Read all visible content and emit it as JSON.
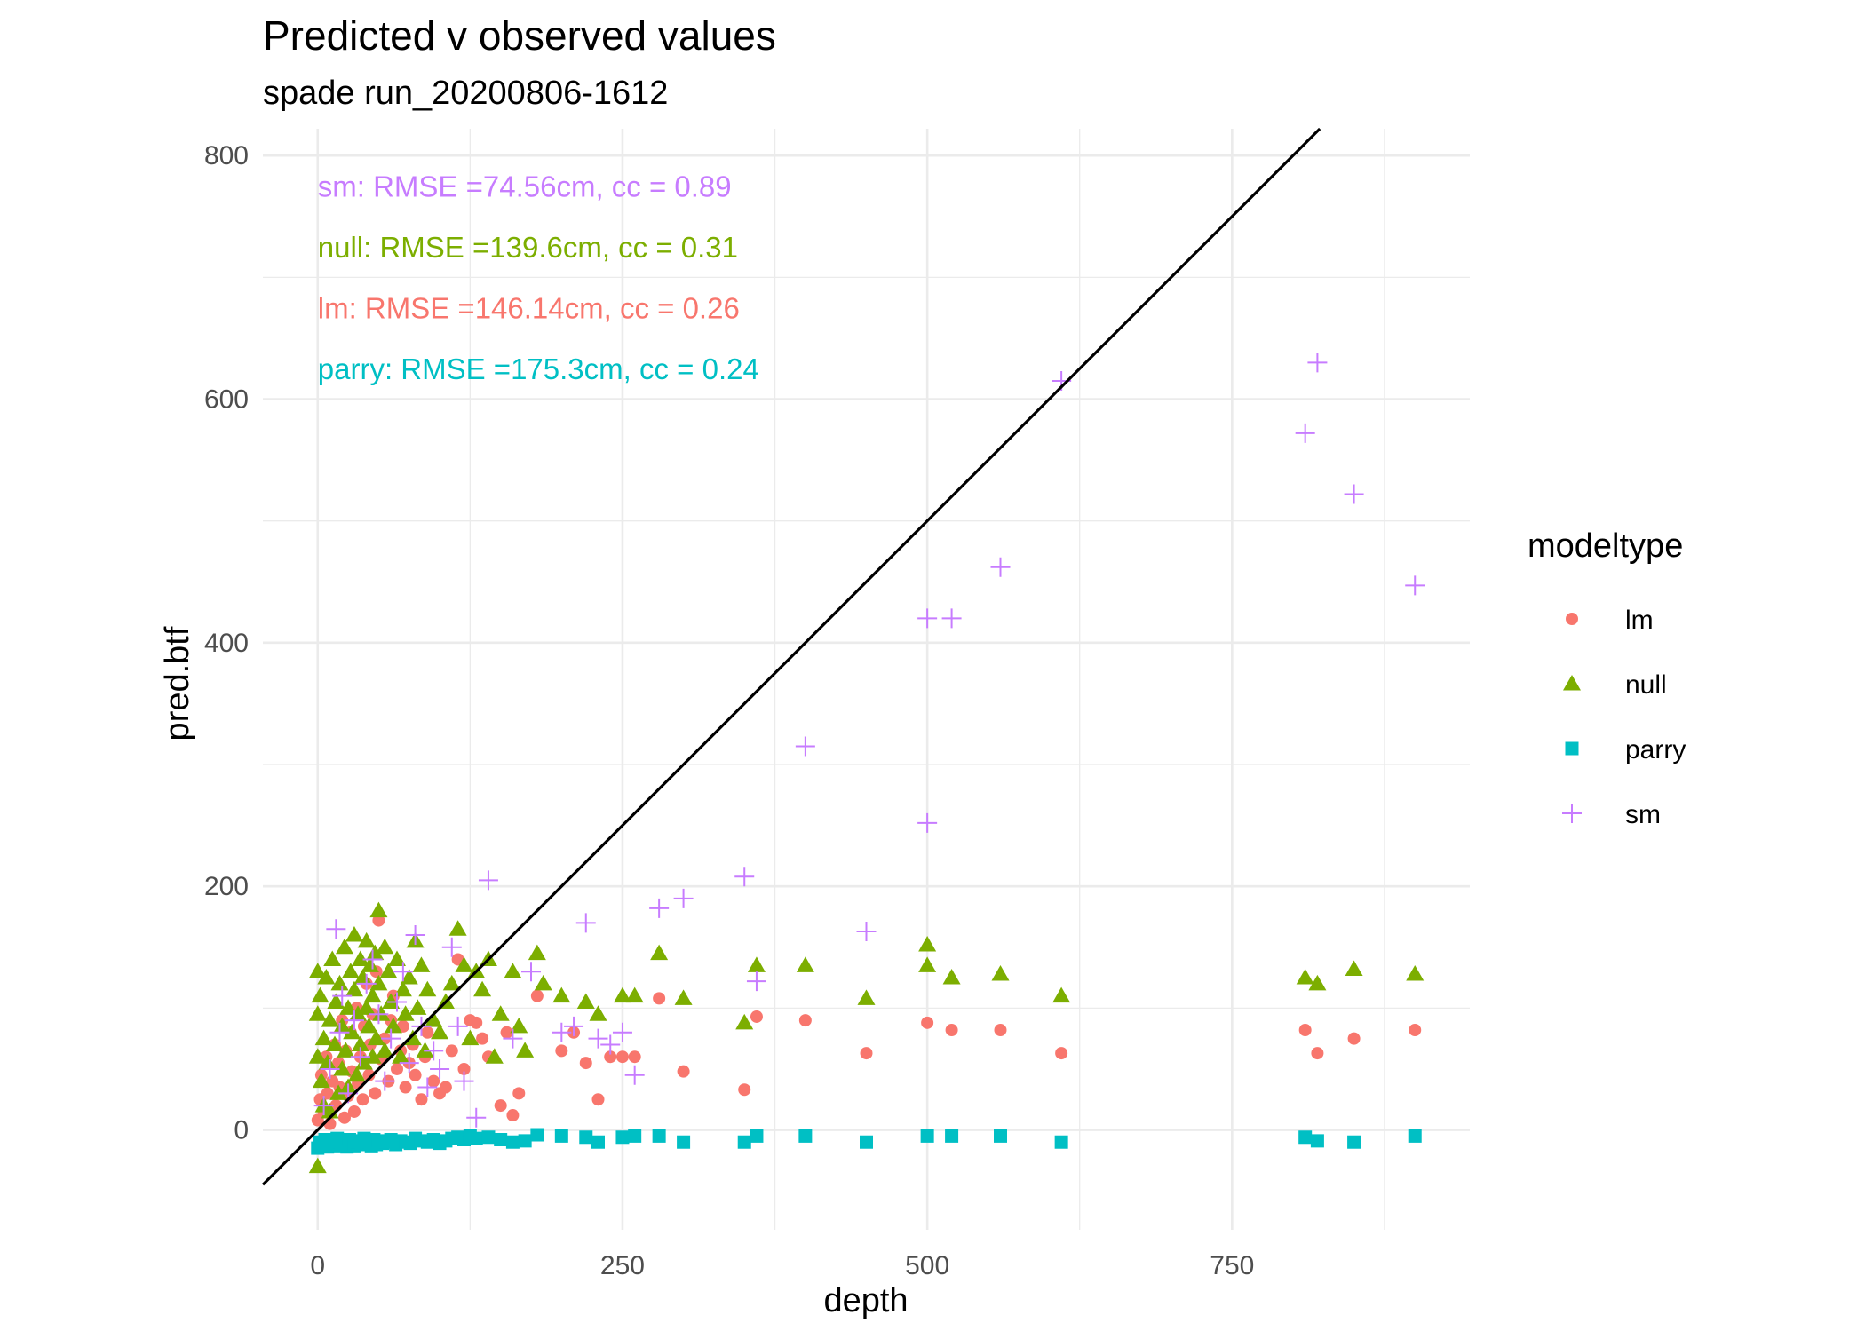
{
  "chart_data": {
    "type": "scatter",
    "title": "Predicted v observed values",
    "subtitle": "spade run_20200806-1612",
    "xlabel": "depth",
    "ylabel": "pred.btf",
    "xlim": [
      -45,
      945
    ],
    "ylim": [
      -82,
      822
    ],
    "x_ticks": [
      0,
      250,
      500,
      750
    ],
    "y_ticks": [
      0,
      200,
      400,
      600,
      800
    ],
    "grid": true,
    "legend": {
      "title": "modeltype",
      "position": "right",
      "entries": [
        {
          "name": "lm",
          "shape": "circle",
          "color": "#F8766D"
        },
        {
          "name": "null",
          "shape": "triangle",
          "color": "#7CAE00"
        },
        {
          "name": "parry",
          "shape": "square",
          "color": "#00BFC4"
        },
        {
          "name": "sm",
          "shape": "plus",
          "color": "#C77CFF"
        }
      ]
    },
    "reference_line": {
      "slope": 1,
      "intercept": 0,
      "color": "#000000"
    },
    "annotations": [
      {
        "text": "sm: RMSE =74.56cm, cc = 0.89",
        "color": "#C77CFF",
        "x": 0,
        "y": 775
      },
      {
        "text": "null: RMSE =139.6cm, cc = 0.31",
        "color": "#7CAE00",
        "x": 0,
        "y": 725
      },
      {
        "text": "lm: RMSE =146.14cm, cc = 0.26",
        "color": "#F8766D",
        "x": 0,
        "y": 675
      },
      {
        "text": "parry: RMSE =175.3cm, cc = 0.24",
        "color": "#00BFC4",
        "x": 0,
        "y": 625
      }
    ],
    "series": [
      {
        "name": "lm",
        "shape": "circle",
        "color": "#F8766D",
        "x": [
          0,
          2,
          3,
          5,
          7,
          8,
          10,
          12,
          14,
          15,
          17,
          18,
          20,
          22,
          23,
          25,
          27,
          28,
          30,
          32,
          33,
          35,
          37,
          38,
          40,
          42,
          43,
          45,
          47,
          48,
          50,
          52,
          55,
          58,
          60,
          62,
          65,
          68,
          70,
          72,
          75,
          78,
          80,
          85,
          88,
          90,
          95,
          100,
          105,
          110,
          115,
          120,
          125,
          130,
          135,
          140,
          150,
          155,
          160,
          165,
          180,
          200,
          210,
          220,
          230,
          240,
          250,
          260,
          280,
          300,
          350,
          360,
          400,
          450,
          500,
          520,
          560,
          610,
          810,
          820,
          850,
          900
        ],
        "y": [
          8,
          25,
          45,
          15,
          60,
          30,
          5,
          40,
          70,
          20,
          55,
          35,
          90,
          10,
          65,
          28,
          80,
          48,
          15,
          100,
          38,
          60,
          25,
          85,
          120,
          45,
          70,
          95,
          30,
          130,
          172,
          58,
          75,
          40,
          90,
          110,
          50,
          65,
          85,
          35,
          55,
          70,
          45,
          25,
          60,
          80,
          40,
          30,
          35,
          65,
          140,
          50,
          90,
          88,
          75,
          60,
          20,
          80,
          12,
          30,
          110,
          65,
          80,
          55,
          25,
          60,
          60,
          60,
          108,
          48,
          33,
          93,
          90,
          63,
          88,
          82,
          82,
          63,
          82,
          63,
          75,
          82
        ]
      },
      {
        "name": "null",
        "shape": "triangle",
        "color": "#7CAE00",
        "x": [
          0,
          0,
          0,
          0,
          2,
          3,
          5,
          5,
          7,
          8,
          10,
          10,
          12,
          14,
          15,
          17,
          18,
          20,
          20,
          22,
          23,
          25,
          25,
          27,
          28,
          30,
          30,
          32,
          33,
          35,
          35,
          37,
          38,
          40,
          40,
          42,
          43,
          45,
          45,
          47,
          48,
          50,
          50,
          52,
          55,
          55,
          58,
          60,
          62,
          65,
          68,
          70,
          72,
          75,
          78,
          80,
          82,
          85,
          88,
          90,
          95,
          100,
          105,
          110,
          115,
          120,
          125,
          130,
          135,
          140,
          145,
          150,
          160,
          165,
          170,
          180,
          185,
          200,
          220,
          230,
          250,
          260,
          280,
          300,
          350,
          360,
          400,
          450,
          500,
          500,
          520,
          560,
          610,
          810,
          820,
          850,
          900
        ],
        "y": [
          130,
          95,
          60,
          -30,
          110,
          40,
          75,
          20,
          125,
          55,
          90,
          15,
          140,
          70,
          105,
          30,
          120,
          85,
          50,
          150,
          65,
          100,
          35,
          130,
          80,
          160,
          115,
          45,
          95,
          140,
          70,
          125,
          55,
          155,
          100,
          85,
          135,
          60,
          110,
          145,
          75,
          180,
          120,
          95,
          150,
          65,
          130,
          105,
          85,
          140,
          60,
          115,
          95,
          125,
          75,
          155,
          100,
          135,
          65,
          115,
          90,
          80,
          105,
          120,
          165,
          135,
          75,
          130,
          115,
          140,
          60,
          95,
          130,
          85,
          65,
          145,
          120,
          110,
          105,
          95,
          110,
          110,
          145,
          108,
          88,
          135,
          135,
          108,
          135,
          152,
          125,
          128,
          110,
          125,
          120,
          132,
          128
        ]
      },
      {
        "name": "parry",
        "shape": "square",
        "color": "#00BFC4",
        "x": [
          0,
          2,
          4,
          6,
          8,
          10,
          12,
          14,
          16,
          18,
          20,
          22,
          24,
          26,
          28,
          30,
          32,
          34,
          36,
          38,
          40,
          42,
          44,
          46,
          48,
          50,
          53,
          56,
          60,
          64,
          68,
          72,
          76,
          80,
          85,
          90,
          95,
          100,
          105,
          110,
          115,
          120,
          125,
          130,
          140,
          150,
          160,
          170,
          180,
          200,
          220,
          230,
          250,
          260,
          280,
          300,
          350,
          360,
          400,
          450,
          500,
          520,
          560,
          610,
          810,
          820,
          850,
          900
        ],
        "y": [
          -15,
          -10,
          -12,
          -8,
          -14,
          -9,
          -11,
          -13,
          -7,
          -10,
          -12,
          -9,
          -14,
          -8,
          -11,
          -13,
          -10,
          -9,
          -12,
          -7,
          -11,
          -10,
          -13,
          -8,
          -12,
          -9,
          -11,
          -10,
          -8,
          -12,
          -9,
          -10,
          -11,
          -7,
          -9,
          -10,
          -8,
          -11,
          -9,
          -7,
          -6,
          -8,
          -5,
          -7,
          -6,
          -8,
          -10,
          -9,
          -4,
          -5,
          -6,
          -10,
          -6,
          -5,
          -5,
          -10,
          -10,
          -5,
          -5,
          -10,
          -5,
          -5,
          -5,
          -10,
          -6,
          -9,
          -10,
          -5
        ]
      },
      {
        "name": "sm",
        "shape": "plus",
        "color": "#C77CFF",
        "x": [
          5,
          10,
          15,
          18,
          20,
          25,
          30,
          35,
          40,
          45,
          50,
          55,
          60,
          65,
          70,
          75,
          80,
          85,
          90,
          95,
          100,
          110,
          115,
          120,
          130,
          140,
          160,
          175,
          200,
          210,
          220,
          230,
          240,
          250,
          260,
          280,
          300,
          350,
          360,
          400,
          450,
          500,
          500,
          520,
          560,
          610,
          810,
          820,
          850,
          900
        ],
        "y": [
          20,
          50,
          165,
          80,
          110,
          30,
          90,
          60,
          120,
          140,
          95,
          40,
          75,
          105,
          130,
          55,
          160,
          85,
          35,
          65,
          50,
          150,
          85,
          40,
          10,
          205,
          75,
          130,
          80,
          85,
          170,
          75,
          70,
          80,
          45,
          182,
          190,
          208,
          122,
          315,
          163,
          420,
          252,
          420,
          462,
          615,
          572,
          630,
          522,
          447
        ]
      }
    ]
  }
}
